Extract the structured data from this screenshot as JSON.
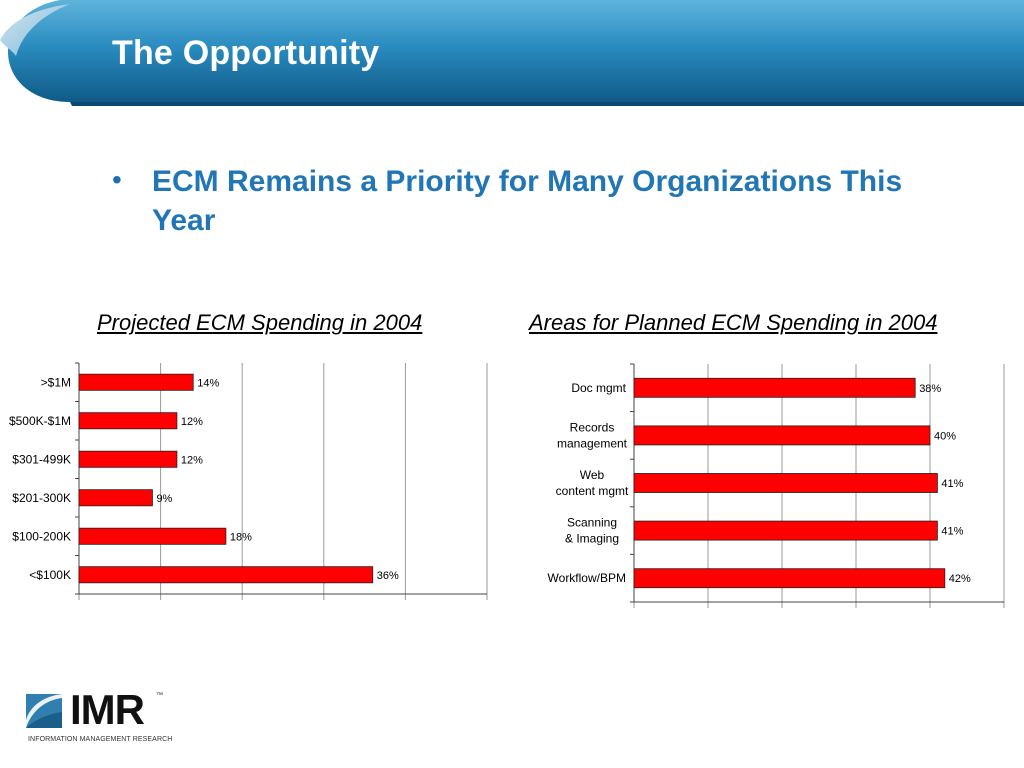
{
  "slide": {
    "title": "The Opportunity",
    "bullet": "ECM Remains a Priority for Many Organizations This Year"
  },
  "logo": {
    "name": "IMR",
    "tagline": "INFORMATION MANAGEMENT RESEARCH"
  },
  "colors": {
    "header_blue": "#1b7cae",
    "header_dark": "#0f5a86",
    "accent_blue": "#2176b5",
    "bar_red": "#ff0000"
  },
  "chart_data": [
    {
      "type": "bar",
      "orientation": "horizontal",
      "title": "Projected ECM Spending in 2004",
      "categories": [
        ">$1M",
        "$500K-$1M",
        "$301-499K",
        "$201-300K",
        "$100-200K",
        "<$100K"
      ],
      "values": [
        14,
        12,
        12,
        9,
        18,
        36
      ],
      "value_labels": [
        "14%",
        "12%",
        "12%",
        "9%",
        "18%",
        "36%"
      ],
      "xlim": [
        0,
        50
      ],
      "grid": true,
      "legend": "none"
    },
    {
      "type": "bar",
      "orientation": "horizontal",
      "title": "Areas for Planned ECM Spending in 2004",
      "categories": [
        "Doc mgmt",
        "Records management",
        "Web content mgmt",
        "Scanning & Imaging",
        "Workflow/BPM"
      ],
      "values": [
        38,
        40,
        41,
        41,
        42
      ],
      "value_labels": [
        "38%",
        "40%",
        "41%",
        "41%",
        "42%"
      ],
      "xlim": [
        0,
        50
      ],
      "grid": true,
      "legend": "none"
    }
  ]
}
